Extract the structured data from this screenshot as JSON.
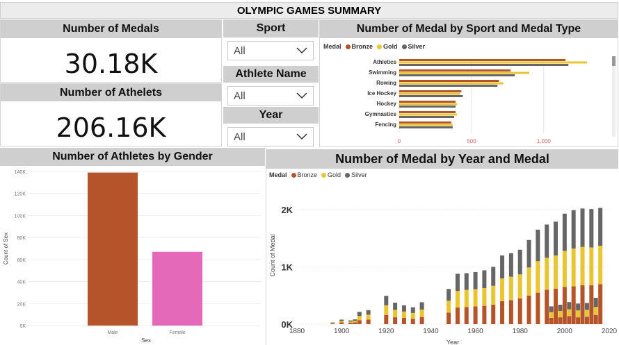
{
  "title": "OLYMPIC GAMES SUMMARY",
  "colors": {
    "bronze": "#b5532a",
    "gold": "#e8c531",
    "silver": "#666666",
    "male": "#b5532a",
    "female": "#e569b9",
    "header_bg": "#cfcfcf"
  },
  "kpis": {
    "medals": {
      "label": "Number of Medals",
      "value": "30.18K"
    },
    "athletes": {
      "label": "Number of Athelets",
      "value": "206.16K"
    }
  },
  "slicers": [
    {
      "label": "Sport",
      "value": "All",
      "icon": "chevron-down-icon"
    },
    {
      "label": "Athlete Name",
      "value": "All",
      "icon": "chevron-down-icon"
    },
    {
      "label": "Year",
      "value": "All",
      "icon": "chevron-down-icon"
    }
  ],
  "legend": {
    "title": "Medal",
    "items": [
      "Bronze",
      "Gold",
      "Silver"
    ]
  },
  "chart_data": [
    {
      "type": "bar",
      "orientation": "horizontal",
      "title": "Number of Medal by Sport and Medal Type",
      "categories": [
        "Athletics",
        "Swimming",
        "Rowing",
        "Ice Hockey",
        "Hockey",
        "Gymnastics",
        "Fencing"
      ],
      "series": [
        {
          "name": "Bronze",
          "values": [
            1150,
            770,
            690,
            430,
            390,
            390,
            360
          ]
        },
        {
          "name": "Gold",
          "values": [
            1300,
            900,
            720,
            420,
            400,
            400,
            370
          ]
        },
        {
          "name": "Silver",
          "values": [
            1170,
            800,
            680,
            440,
            390,
            380,
            370
          ]
        }
      ],
      "xticks": [
        "0",
        "500",
        "1,000"
      ],
      "xlim": [
        0,
        1400
      ],
      "legend_position": "top-left"
    },
    {
      "type": "bar",
      "title": "Number of Athletes by Gender",
      "categories": [
        "Male",
        "Female"
      ],
      "values": [
        139000,
        67000
      ],
      "xlabel": "Sex",
      "ylabel": "Count of Sex",
      "yticks": [
        "0K",
        "20K",
        "40K",
        "60K",
        "80K",
        "100K",
        "120K",
        "140K"
      ],
      "ylim": [
        0,
        140000
      ]
    },
    {
      "type": "bar",
      "stacked": true,
      "title": "Number of Medal by Year and Medal",
      "x": [
        1896,
        1900,
        1904,
        1906,
        1908,
        1912,
        1920,
        1924,
        1928,
        1932,
        1936,
        1948,
        1952,
        1956,
        1960,
        1964,
        1968,
        1972,
        1976,
        1980,
        1984,
        1988,
        1992,
        1994,
        1996,
        1998,
        2000,
        2002,
        2004,
        2006,
        2008,
        2010,
        2012,
        2014,
        2016
      ],
      "series": [
        {
          "name": "Bronze",
          "values": [
            12,
            30,
            25,
            30,
            70,
            80,
            160,
            120,
            110,
            95,
            125,
            200,
            290,
            300,
            310,
            320,
            340,
            400,
            420,
            450,
            500,
            550,
            600,
            110,
            620,
            120,
            650,
            140,
            660,
            120,
            680,
            130,
            680,
            160,
            700
          ]
        },
        {
          "name": "Gold",
          "values": [
            10,
            25,
            20,
            28,
            75,
            85,
            170,
            130,
            110,
            100,
            130,
            210,
            290,
            300,
            300,
            310,
            330,
            400,
            410,
            420,
            490,
            550,
            560,
            100,
            580,
            110,
            630,
            120,
            660,
            120,
            670,
            120,
            660,
            140,
            670
          ]
        },
        {
          "name": "Silver",
          "values": [
            8,
            25,
            20,
            26,
            70,
            80,
            165,
            125,
            110,
            100,
            128,
            205,
            300,
            290,
            300,
            310,
            330,
            400,
            410,
            430,
            480,
            550,
            580,
            100,
            590,
            110,
            650,
            125,
            670,
            120,
            670,
            120,
            670,
            160,
            660
          ]
        }
      ],
      "xticks": [
        "1880",
        "1900",
        "1920",
        "1940",
        "1960",
        "1980",
        "2000",
        "2020"
      ],
      "yticks": [
        "0K",
        "1K",
        "2K"
      ],
      "xlim": [
        1880,
        2020
      ],
      "ylim": [
        0,
        2400
      ],
      "xlabel": "Year",
      "ylabel": "Count of Medal",
      "legend_position": "top-left"
    }
  ]
}
